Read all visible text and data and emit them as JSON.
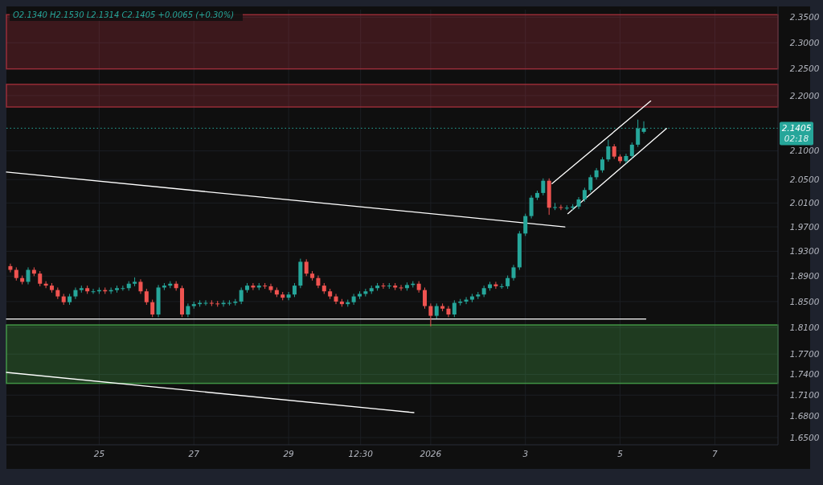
{
  "chart_data": {
    "type": "candlestick",
    "title": "O2.1340 H2.1530 L2.1314 C2.1405 +0.0065 (+0.30%)",
    "x": [
      "2025-12-23T03:00",
      "2025-12-23T06:00",
      "2025-12-23T09:00",
      "2025-12-23T12:00",
      "2025-12-23T15:00",
      "2025-12-23T18:00",
      "2025-12-23T21:00",
      "2025-12-24T00:00",
      "2025-12-24T03:00",
      "2025-12-24T06:00",
      "2025-12-24T09:00",
      "2025-12-24T12:00",
      "2025-12-24T15:00",
      "2025-12-24T18:00",
      "2025-12-24T21:00",
      "2025-12-25T00:00",
      "2025-12-25T03:00",
      "2025-12-25T06:00",
      "2025-12-25T09:00",
      "2025-12-25T12:00",
      "2025-12-25T15:00",
      "2025-12-25T18:00",
      "2025-12-25T21:00",
      "2025-12-26T00:00",
      "2025-12-26T03:00",
      "2025-12-26T06:00",
      "2025-12-26T09:00",
      "2025-12-26T12:00",
      "2025-12-26T15:00",
      "2025-12-26T18:00",
      "2025-12-26T21:00",
      "2025-12-27T00:00",
      "2025-12-27T03:00",
      "2025-12-27T06:00",
      "2025-12-27T09:00",
      "2025-12-27T12:00",
      "2025-12-27T15:00",
      "2025-12-27T18:00",
      "2025-12-27T21:00",
      "2025-12-28T00:00",
      "2025-12-28T03:00",
      "2025-12-28T06:00",
      "2025-12-28T09:00",
      "2025-12-28T12:00",
      "2025-12-28T15:00",
      "2025-12-28T18:00",
      "2025-12-28T21:00",
      "2025-12-29T00:00",
      "2025-12-29T03:00",
      "2025-12-29T06:00",
      "2025-12-29T09:00",
      "2025-12-29T12:00",
      "2025-12-29T15:00",
      "2025-12-29T18:00",
      "2025-12-29T21:00",
      "2025-12-30T00:00",
      "2025-12-30T03:00",
      "2025-12-30T06:00",
      "2025-12-30T09:00",
      "2025-12-30T12:00",
      "2025-12-30T15:00",
      "2025-12-30T18:00",
      "2025-12-30T21:00",
      "2025-12-31T00:00",
      "2025-12-31T03:00",
      "2025-12-31T06:00",
      "2025-12-31T09:00",
      "2025-12-31T12:00",
      "2025-12-31T15:00",
      "2025-12-31T18:00",
      "2025-12-31T21:00",
      "2026-01-01T00:00",
      "2026-01-01T03:00",
      "2026-01-01T06:00",
      "2026-01-01T09:00",
      "2026-01-01T12:00",
      "2026-01-01T15:00",
      "2026-01-01T18:00",
      "2026-01-01T21:00",
      "2026-01-02T00:00",
      "2026-01-02T03:00",
      "2026-01-02T06:00",
      "2026-01-02T09:00",
      "2026-01-02T12:00",
      "2026-01-02T15:00",
      "2026-01-02T18:00",
      "2026-01-02T21:00",
      "2026-01-03T00:00",
      "2026-01-03T03:00",
      "2026-01-03T06:00",
      "2026-01-03T09:00",
      "2026-01-03T12:00",
      "2026-01-03T15:00",
      "2026-01-03T18:00",
      "2026-01-03T21:00",
      "2026-01-04T00:00",
      "2026-01-04T03:00",
      "2026-01-04T06:00",
      "2026-01-04T09:00",
      "2026-01-04T12:00",
      "2026-01-04T15:00",
      "2026-01-04T18:00",
      "2026-01-04T21:00",
      "2026-01-05T00:00",
      "2026-01-05T03:00",
      "2026-01-05T06:00",
      "2026-01-05T09:00",
      "2026-01-05T12:00"
    ],
    "ohlc": [
      [
        1.906,
        1.91,
        1.896,
        1.9
      ],
      [
        1.9,
        1.904,
        1.883,
        1.887
      ],
      [
        1.887,
        1.891,
        1.877,
        1.881
      ],
      [
        1.881,
        1.904,
        1.877,
        1.9
      ],
      [
        1.9,
        1.904,
        1.89,
        1.894
      ],
      [
        1.894,
        1.898,
        1.874,
        1.878
      ],
      [
        1.878,
        1.882,
        1.871,
        1.875
      ],
      [
        1.875,
        1.879,
        1.864,
        1.868
      ],
      [
        1.868,
        1.872,
        1.854,
        1.858
      ],
      [
        1.858,
        1.862,
        1.845,
        1.849
      ],
      [
        1.849,
        1.862,
        1.845,
        1.858
      ],
      [
        1.858,
        1.872,
        1.854,
        1.868
      ],
      [
        1.868,
        1.875,
        1.864,
        1.871
      ],
      [
        1.871,
        1.875,
        1.862,
        1.866
      ],
      [
        1.866,
        1.87,
        1.862,
        1.866
      ],
      [
        1.866,
        1.872,
        1.862,
        1.868
      ],
      [
        1.868,
        1.872,
        1.862,
        1.866
      ],
      [
        1.866,
        1.872,
        1.862,
        1.868
      ],
      [
        1.868,
        1.875,
        1.864,
        1.871
      ],
      [
        1.871,
        1.875,
        1.867,
        1.871
      ],
      [
        1.871,
        1.882,
        1.867,
        1.878
      ],
      [
        1.878,
        1.888,
        1.874,
        1.881
      ],
      [
        1.881,
        1.885,
        1.862,
        1.866
      ],
      [
        1.866,
        1.87,
        1.845,
        1.849
      ],
      [
        1.849,
        1.853,
        1.826,
        1.83
      ],
      [
        1.83,
        1.876,
        1.826,
        1.872
      ],
      [
        1.872,
        1.879,
        1.868,
        1.875
      ],
      [
        1.875,
        1.882,
        1.871,
        1.878
      ],
      [
        1.878,
        1.882,
        1.867,
        1.871
      ],
      [
        1.871,
        1.875,
        1.826,
        1.83
      ],
      [
        1.83,
        1.847,
        1.826,
        1.843
      ],
      [
        1.843,
        1.85,
        1.839,
        1.846
      ],
      [
        1.846,
        1.852,
        1.842,
        1.848
      ],
      [
        1.848,
        1.852,
        1.844,
        1.848
      ],
      [
        1.848,
        1.852,
        1.843,
        1.847
      ],
      [
        1.847,
        1.851,
        1.842,
        1.846
      ],
      [
        1.846,
        1.852,
        1.842,
        1.848
      ],
      [
        1.848,
        1.852,
        1.844,
        1.848
      ],
      [
        1.848,
        1.854,
        1.844,
        1.85
      ],
      [
        1.85,
        1.872,
        1.846,
        1.868
      ],
      [
        1.868,
        1.879,
        1.864,
        1.875
      ],
      [
        1.875,
        1.879,
        1.868,
        1.872
      ],
      [
        1.872,
        1.879,
        1.868,
        1.875
      ],
      [
        1.875,
        1.879,
        1.87,
        1.874
      ],
      [
        1.874,
        1.878,
        1.864,
        1.868
      ],
      [
        1.868,
        1.872,
        1.857,
        1.861
      ],
      [
        1.861,
        1.865,
        1.852,
        1.856
      ],
      [
        1.856,
        1.865,
        1.852,
        1.861
      ],
      [
        1.861,
        1.879,
        1.857,
        1.875
      ],
      [
        1.875,
        1.918,
        1.871,
        1.913
      ],
      [
        1.913,
        1.917,
        1.89,
        1.894
      ],
      [
        1.894,
        1.898,
        1.883,
        1.887
      ],
      [
        1.887,
        1.891,
        1.871,
        1.875
      ],
      [
        1.875,
        1.879,
        1.862,
        1.866
      ],
      [
        1.866,
        1.87,
        1.854,
        1.858
      ],
      [
        1.858,
        1.862,
        1.846,
        1.85
      ],
      [
        1.85,
        1.854,
        1.842,
        1.846
      ],
      [
        1.846,
        1.853,
        1.842,
        1.849
      ],
      [
        1.849,
        1.862,
        1.845,
        1.858
      ],
      [
        1.858,
        1.866,
        1.854,
        1.862
      ],
      [
        1.862,
        1.87,
        1.858,
        1.866
      ],
      [
        1.866,
        1.875,
        1.862,
        1.871
      ],
      [
        1.871,
        1.879,
        1.867,
        1.875
      ],
      [
        1.875,
        1.879,
        1.87,
        1.874
      ],
      [
        1.874,
        1.879,
        1.87,
        1.875
      ],
      [
        1.875,
        1.879,
        1.868,
        1.872
      ],
      [
        1.872,
        1.876,
        1.867,
        1.871
      ],
      [
        1.871,
        1.88,
        1.867,
        1.876
      ],
      [
        1.876,
        1.882,
        1.872,
        1.878
      ],
      [
        1.878,
        1.882,
        1.864,
        1.868
      ],
      [
        1.868,
        1.872,
        1.839,
        1.843
      ],
      [
        1.843,
        1.847,
        1.812,
        1.828
      ],
      [
        1.828,
        1.847,
        1.824,
        1.843
      ],
      [
        1.843,
        1.847,
        1.835,
        1.839
      ],
      [
        1.839,
        1.843,
        1.826,
        1.83
      ],
      [
        1.83,
        1.852,
        1.826,
        1.848
      ],
      [
        1.848,
        1.854,
        1.844,
        1.85
      ],
      [
        1.85,
        1.857,
        1.846,
        1.853
      ],
      [
        1.853,
        1.862,
        1.849,
        1.858
      ],
      [
        1.858,
        1.865,
        1.854,
        1.861
      ],
      [
        1.861,
        1.875,
        1.857,
        1.871
      ],
      [
        1.871,
        1.881,
        1.867,
        1.877
      ],
      [
        1.877,
        1.881,
        1.87,
        1.874
      ],
      [
        1.874,
        1.878,
        1.87,
        1.874
      ],
      [
        1.874,
        1.891,
        1.87,
        1.887
      ],
      [
        1.887,
        1.908,
        1.883,
        1.904
      ],
      [
        1.904,
        1.963,
        1.9,
        1.959
      ],
      [
        1.959,
        1.992,
        1.955,
        1.988
      ],
      [
        1.988,
        2.023,
        1.984,
        2.019
      ],
      [
        2.019,
        2.031,
        2.015,
        2.027
      ],
      [
        2.027,
        2.052,
        2.023,
        2.048
      ],
      [
        2.048,
        2.052,
        1.99,
        2.002
      ],
      [
        2.002,
        2.01,
        1.998,
        2.003
      ],
      [
        2.003,
        2.007,
        1.998,
        2.002
      ],
      [
        2.002,
        2.006,
        1.998,
        2.002
      ],
      [
        2.002,
        2.008,
        1.998,
        2.004
      ],
      [
        2.004,
        2.02,
        2.0,
        2.016
      ],
      [
        2.016,
        2.036,
        2.012,
        2.032
      ],
      [
        2.032,
        2.058,
        2.028,
        2.054
      ],
      [
        2.054,
        2.07,
        2.05,
        2.066
      ],
      [
        2.066,
        2.089,
        2.062,
        2.085
      ],
      [
        2.085,
        2.12,
        2.081,
        2.108
      ],
      [
        2.108,
        2.112,
        2.086,
        2.09
      ],
      [
        2.09,
        2.094,
        2.078,
        2.082
      ],
      [
        2.082,
        2.095,
        2.078,
        2.091
      ],
      [
        2.091,
        2.115,
        2.087,
        2.111
      ],
      [
        2.111,
        2.156,
        2.107,
        2.14
      ],
      [
        2.134,
        2.153,
        2.131,
        2.1405
      ]
    ],
    "series": [
      {
        "type": "line",
        "color": "#ffffff",
        "x": [
          "2025-12-23T01:00",
          "2026-01-03T20:00"
        ],
        "values": [
          2.063,
          1.97
        ]
      },
      {
        "type": "line",
        "color": "#ffffff",
        "x": [
          "2025-12-23T01:00",
          "2025-12-31T15:30"
        ],
        "values": [
          1.743,
          1.685
        ]
      },
      {
        "type": "line",
        "color": "#ffffff",
        "x": [
          "2025-12-23T01:00",
          "2026-01-05T13:00"
        ],
        "values": [
          1.823,
          1.823
        ]
      },
      {
        "type": "line",
        "color": "#ffffff",
        "x": [
          "2026-01-03T13:30",
          "2026-01-05T15:30"
        ],
        "values": [
          2.043,
          2.19
        ]
      },
      {
        "type": "line",
        "color": "#ffffff",
        "x": [
          "2026-01-03T21:30",
          "2026-01-05T23:30"
        ],
        "values": [
          1.992,
          2.14
        ]
      }
    ],
    "bands": [
      {
        "axis": "y",
        "from": 2.25,
        "to": 2.355,
        "color": "#b2323f"
      },
      {
        "axis": "y",
        "from": 2.179,
        "to": 2.221,
        "color": "#b2323f"
      },
      {
        "axis": "y",
        "from": 1.727,
        "to": 1.814,
        "color": "#4caf50"
      }
    ],
    "ref_lines": [
      {
        "axis": "y",
        "value": 2.1405,
        "label": "2.1405",
        "color": "#26a69a",
        "line_style": "dotted"
      }
    ],
    "annotations": [
      "02:18"
    ],
    "xlim": [
      "2025-12-23T01:00",
      "2026-01-08T08:00"
    ],
    "xticks": [
      {
        "value": "2025-12-25",
        "label": "25"
      },
      {
        "value": "2025-12-27",
        "label": "27"
      },
      {
        "value": "2025-12-29",
        "label": "29"
      },
      {
        "value": "2025-12-30T12:30",
        "label": "12:30"
      },
      {
        "value": "2026-01-01",
        "label": "2026"
      },
      {
        "value": "2026-01-03",
        "label": "3"
      },
      {
        "value": "2026-01-05",
        "label": "5"
      },
      {
        "value": "2026-01-07",
        "label": "7"
      }
    ],
    "ylim": [
      1.64,
      2.365
    ],
    "yticks": [
      {
        "value": 1.65,
        "label": "1.6500"
      },
      {
        "value": 1.68,
        "label": "1.6800"
      },
      {
        "value": 1.71,
        "label": "1.7100"
      },
      {
        "value": 1.74,
        "label": "1.7400"
      },
      {
        "value": 1.77,
        "label": "1.7700"
      },
      {
        "value": 1.81,
        "label": "1.8100"
      },
      {
        "value": 1.85,
        "label": "1.8500"
      },
      {
        "value": 1.89,
        "label": "1.8900"
      },
      {
        "value": 1.93,
        "label": "1.9300"
      },
      {
        "value": 1.97,
        "label": "1.9700"
      },
      {
        "value": 2.01,
        "label": "2.0100"
      },
      {
        "value": 2.05,
        "label": "2.0500"
      },
      {
        "value": 2.1,
        "label": "2.1000"
      },
      {
        "value": 2.2,
        "label": "2.2000"
      },
      {
        "value": 2.25,
        "label": "2.2500"
      },
      {
        "value": 2.3,
        "label": "2.3000"
      },
      {
        "value": 2.35,
        "label": "2.3500"
      }
    ],
    "log": true,
    "grid": true
  }
}
